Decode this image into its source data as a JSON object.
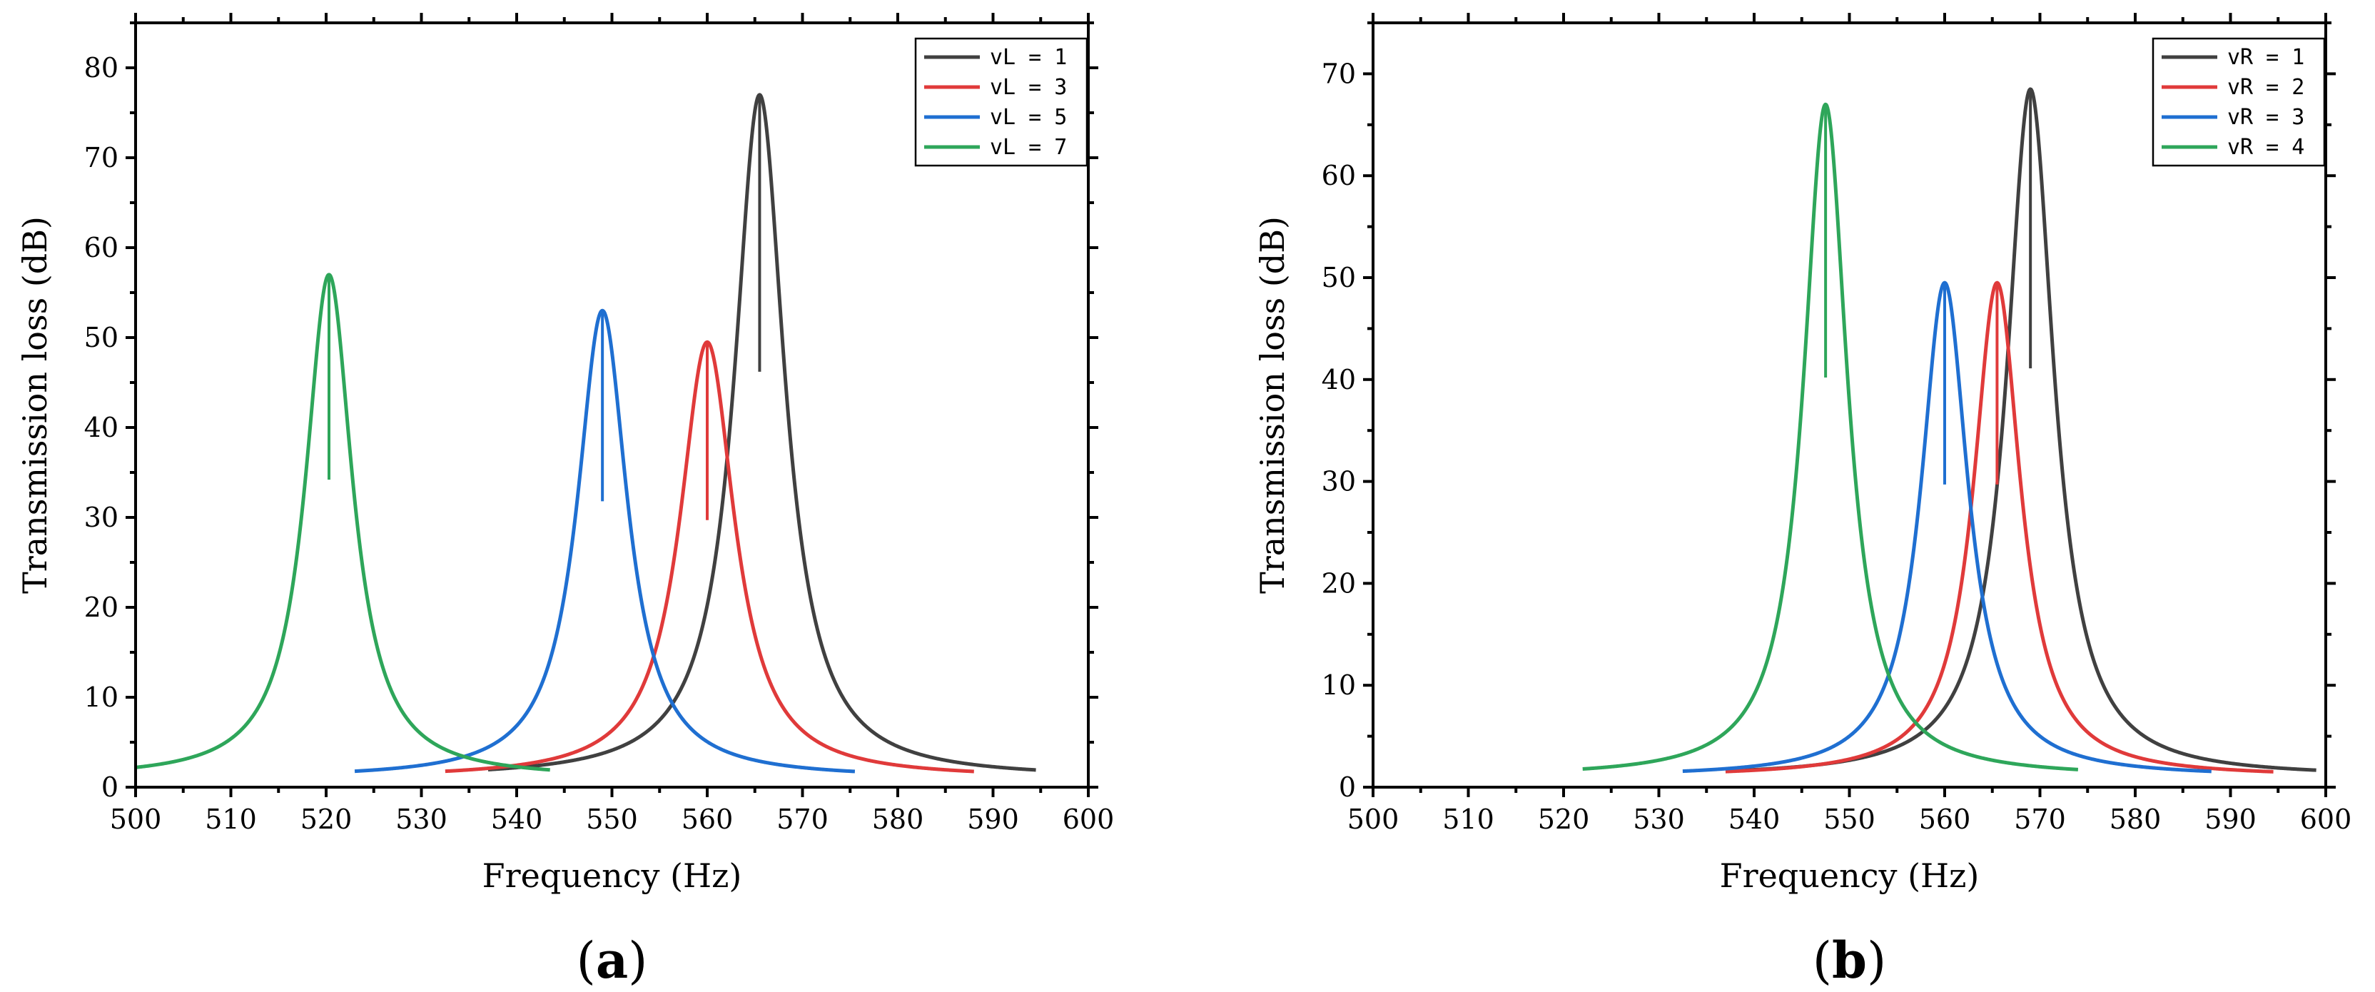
{
  "chart_data": [
    {
      "type": "line",
      "panel_label": "a",
      "xlabel": "Frequency (Hz)",
      "ylabel": "Transmission loss (dB)",
      "xlim": [
        500,
        600
      ],
      "ylim": [
        0,
        85
      ],
      "xticks": [
        500,
        510,
        520,
        530,
        540,
        550,
        560,
        570,
        580,
        590,
        600
      ],
      "yticks": [
        0,
        10,
        20,
        30,
        40,
        50,
        60,
        70,
        80
      ],
      "legend_position": "top-right",
      "series": [
        {
          "name": "vL = 1",
          "color": "#404040",
          "peak_x": 565.5,
          "peak_y": 77,
          "x_start": 537,
          "x_end": 594.5,
          "width": 3.2
        },
        {
          "name": "vL = 3",
          "color": "#e03a3a",
          "peak_x": 560,
          "peak_y": 49.5,
          "x_start": 532.5,
          "x_end": 588,
          "width": 3.5
        },
        {
          "name": "vL = 5",
          "color": "#1f6fd1",
          "peak_x": 549,
          "peak_y": 53,
          "x_start": 523,
          "x_end": 575.5,
          "width": 3.2
        },
        {
          "name": "vL = 7",
          "color": "#2ea65a",
          "peak_x": 520.3,
          "peak_y": 57,
          "x_start": 500,
          "x_end": 543.5,
          "width": 3.0
        }
      ]
    },
    {
      "type": "line",
      "panel_label": "b",
      "xlabel": "Frequency (Hz)",
      "ylabel": "Transmission loss (dB)",
      "xlim": [
        500,
        600
      ],
      "ylim": [
        0,
        75
      ],
      "xticks": [
        500,
        510,
        520,
        530,
        540,
        550,
        560,
        570,
        580,
        590,
        600
      ],
      "yticks": [
        0,
        10,
        20,
        30,
        40,
        50,
        60,
        70
      ],
      "legend_position": "top-right",
      "series": [
        {
          "name": "vR = 1",
          "color": "#404040",
          "peak_x": 569,
          "peak_y": 68.5,
          "x_start": 537,
          "x_end": 599,
          "width": 3.0
        },
        {
          "name": "vR = 2",
          "color": "#e03a3a",
          "peak_x": 565.5,
          "peak_y": 49.5,
          "x_start": 537,
          "x_end": 594.5,
          "width": 3.0
        },
        {
          "name": "vR = 3",
          "color": "#1f6fd1",
          "peak_x": 560,
          "peak_y": 49.5,
          "x_start": 532.5,
          "x_end": 588,
          "width": 3.0
        },
        {
          "name": "vR = 4",
          "color": "#2ea65a",
          "peak_x": 547.5,
          "peak_y": 67,
          "x_start": 522,
          "x_end": 574,
          "width": 2.8
        }
      ]
    }
  ]
}
